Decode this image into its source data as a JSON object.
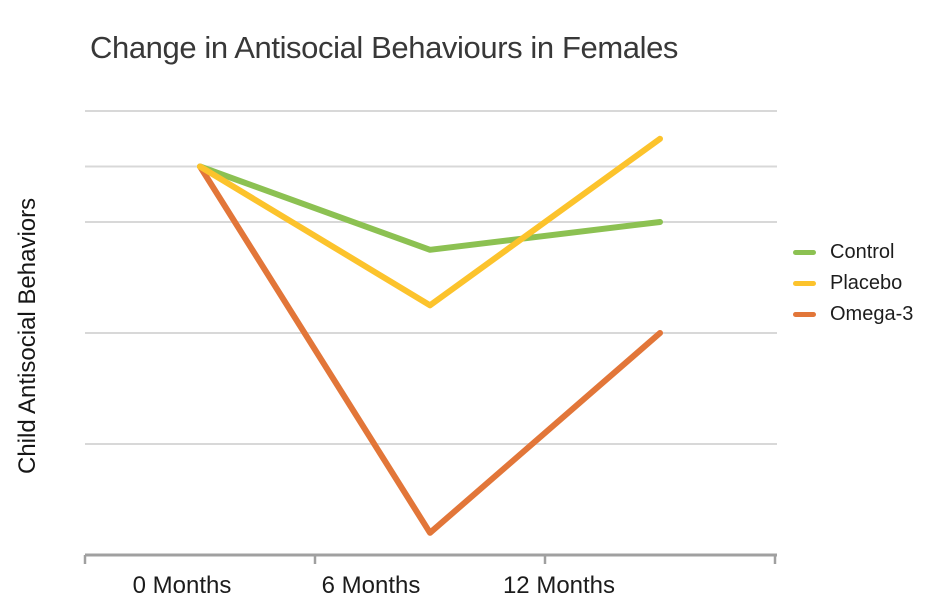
{
  "title": "Change in Antisocial Behaviours in Females",
  "y_axis_label": "Child Antisocial Behaviors",
  "x_axis": {
    "tick_labels": [
      "0 Months",
      "6 Months",
      "12 Months"
    ]
  },
  "legend": {
    "items": [
      {
        "label": "Control",
        "color": "#8CC152"
      },
      {
        "label": "Placebo",
        "color": "#FCC32C"
      },
      {
        "label": "Omega-3",
        "color": "#E27639"
      }
    ]
  },
  "colors": {
    "background": "#FFFFFF",
    "gridline": "#D8D8D8",
    "axis": "#A0A0A0",
    "title_text": "#383838",
    "label_text": "#1C1C1C",
    "control": "#8CC152",
    "placebo": "#FCC32C",
    "omega3": "#E27639"
  },
  "chart_data": {
    "type": "line",
    "title": "Change in Antisocial Behaviours in Females",
    "xlabel": "",
    "ylabel": "Child Antisocial Behaviors",
    "categories": [
      "0 Months",
      "6 Months",
      "12 Months"
    ],
    "series": [
      {
        "name": "Control",
        "color": "#8CC152",
        "values": [
          3.5,
          2.75,
          3.0
        ]
      },
      {
        "name": "Placebo",
        "color": "#FCC32C",
        "values": [
          3.5,
          2.25,
          3.75
        ]
      },
      {
        "name": "Omega-3",
        "color": "#E27639",
        "values": [
          3.5,
          0.2,
          2.0
        ]
      }
    ],
    "ylim": [
      0,
      4.35
    ],
    "y_axis_unlabeled": true,
    "gridline_values": [
      1,
      2,
      3,
      3.5,
      4
    ],
    "y_tick_labels": [],
    "grid": true,
    "legend_position": "right"
  }
}
